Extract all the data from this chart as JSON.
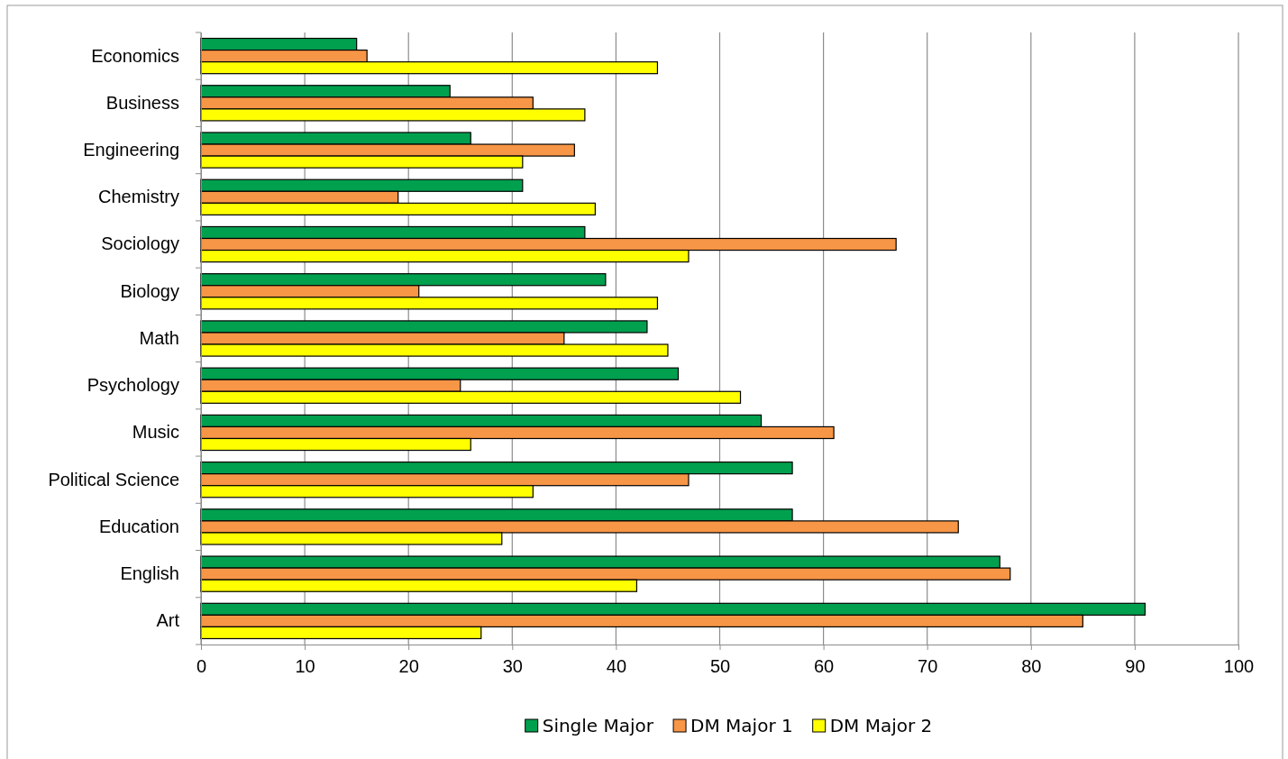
{
  "chart_data": {
    "type": "bar",
    "orientation": "horizontal",
    "categories": [
      "Economics",
      "Business",
      "Engineering",
      "Chemistry",
      "Sociology",
      "Biology",
      "Math",
      "Psychology",
      "Music",
      "Political Science",
      "Education",
      "English",
      "Art"
    ],
    "series": [
      {
        "name": "Single Major",
        "color": "#00a04f",
        "values": [
          15,
          24,
          26,
          31,
          37,
          39,
          43,
          46,
          54,
          57,
          57,
          77,
          91
        ]
      },
      {
        "name": "DM Major 1",
        "color": "#f79646",
        "values": [
          16,
          32,
          36,
          19,
          67,
          21,
          35,
          25,
          61,
          47,
          73,
          78,
          85
        ]
      },
      {
        "name": "DM Major 2",
        "color": "#ffff00",
        "values": [
          44,
          37,
          31,
          38,
          47,
          44,
          45,
          52,
          26,
          32,
          29,
          42,
          27
        ]
      }
    ],
    "xlim": [
      0,
      100
    ],
    "xticks": [
      0,
      10,
      20,
      30,
      40,
      50,
      60,
      70,
      80,
      90,
      100
    ],
    "grid": "x",
    "legend": "bottom"
  }
}
